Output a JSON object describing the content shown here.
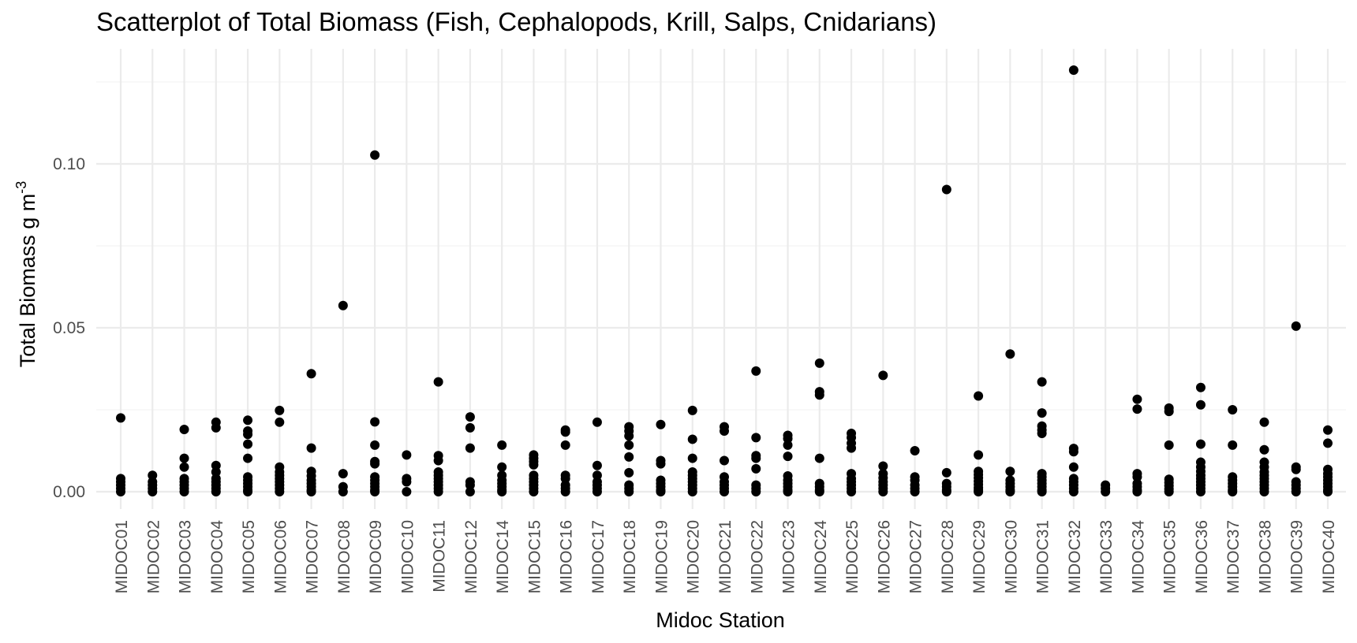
{
  "chart_data": {
    "type": "scatter",
    "title": "Scatterplot of Total Biomass (Fish, Cephalopods, Krill, Salps, Cnidarians)",
    "xlabel": "Midoc Station",
    "ylabel": "Total Biomass g m",
    "ylabel_superscript": "-3",
    "ylim": [
      -0.006,
      0.13
    ],
    "y_ticks": [
      0.0,
      0.05,
      0.1
    ],
    "y_tick_labels": [
      "0.00",
      "0.05",
      "0.10"
    ],
    "grid": true,
    "legend": "none",
    "categories": [
      "MIDOC01",
      "MIDOC02",
      "MIDOC03",
      "MIDOC04",
      "MIDOC05",
      "MIDOC06",
      "MIDOC07",
      "MIDOC08",
      "MIDOC09",
      "MIDOC10",
      "MIDOC11",
      "MIDOC12",
      "MIDOC14",
      "MIDOC15",
      "MIDOC16",
      "MIDOC17",
      "MIDOC18",
      "MIDOC19",
      "MIDOC20",
      "MIDOC21",
      "MIDOC22",
      "MIDOC23",
      "MIDOC24",
      "MIDOC25",
      "MIDOC26",
      "MIDOC27",
      "MIDOC28",
      "MIDOC29",
      "MIDOC30",
      "MIDOC31",
      "MIDOC32",
      "MIDOC33",
      "MIDOC34",
      "MIDOC35",
      "MIDOC36",
      "MIDOC37",
      "MIDOC38",
      "MIDOC39",
      "MIDOC40"
    ],
    "values": [
      [
        0.0225,
        0.004,
        0.003,
        0.002,
        0.001,
        0.0
      ],
      [
        0.005,
        0.003,
        0.002,
        0.001,
        0.0
      ],
      [
        0.019,
        0.0102,
        0.0075,
        0.004,
        0.003,
        0.002,
        0.001,
        0.0
      ],
      [
        0.0212,
        0.0195,
        0.008,
        0.006,
        0.004,
        0.003,
        0.002,
        0.001,
        0.0
      ],
      [
        0.0218,
        0.0185,
        0.0175,
        0.0145,
        0.0102,
        0.0045,
        0.0035,
        0.0025,
        0.0015,
        0.0005,
        0.0
      ],
      [
        0.0248,
        0.0212,
        0.0075,
        0.006,
        0.005,
        0.004,
        0.003,
        0.002,
        0.001,
        0.0
      ],
      [
        0.036,
        0.0133,
        0.0062,
        0.0048,
        0.0035,
        0.0025,
        0.0015,
        0.0005,
        0.0
      ],
      [
        0.0568,
        0.0055,
        0.0015,
        0.0
      ],
      [
        0.1027,
        0.0213,
        0.0142,
        0.0092,
        0.0085,
        0.0045,
        0.0035,
        0.0025,
        0.0015,
        0.0005,
        0.0
      ],
      [
        0.0112,
        0.004,
        0.003,
        0.0
      ],
      [
        0.0335,
        0.011,
        0.0095,
        0.006,
        0.005,
        0.004,
        0.003,
        0.002,
        0.001,
        0.0
      ],
      [
        0.0228,
        0.0195,
        0.0133,
        0.003,
        0.002,
        0.0
      ],
      [
        0.0142,
        0.0075,
        0.005,
        0.0035,
        0.0025,
        0.0015,
        0.0005,
        0.0
      ],
      [
        0.0112,
        0.0102,
        0.0092,
        0.0082,
        0.005,
        0.004,
        0.003,
        0.002,
        0.001,
        0.0
      ],
      [
        0.0188,
        0.0182,
        0.0142,
        0.005,
        0.004,
        0.002,
        0.001,
        0.0
      ],
      [
        0.0212,
        0.008,
        0.005,
        0.003,
        0.002,
        0.001,
        0.0
      ],
      [
        0.0198,
        0.0185,
        0.017,
        0.0142,
        0.0106,
        0.0058,
        0.002,
        0.001,
        0.0
      ],
      [
        0.0205,
        0.0095,
        0.0085,
        0.0035,
        0.0025,
        0.0015,
        0.0005,
        0.0
      ],
      [
        0.0248,
        0.016,
        0.0102,
        0.006,
        0.005,
        0.004,
        0.003,
        0.002,
        0.001,
        0.0
      ],
      [
        0.0198,
        0.0185,
        0.0095,
        0.0045,
        0.003,
        0.002,
        0.001,
        0.0
      ],
      [
        0.0368,
        0.0165,
        0.011,
        0.0102,
        0.007,
        0.002,
        0.001,
        0.0
      ],
      [
        0.0172,
        0.0162,
        0.0142,
        0.0108,
        0.0048,
        0.0035,
        0.0025,
        0.0015,
        0.0005,
        0.0
      ],
      [
        0.0392,
        0.0305,
        0.0295,
        0.0102,
        0.0025,
        0.0015,
        0.0005,
        0.0
      ],
      [
        0.0178,
        0.0165,
        0.0148,
        0.0133,
        0.0055,
        0.004,
        0.003,
        0.002,
        0.001,
        0.0
      ],
      [
        0.0355,
        0.0078,
        0.0055,
        0.0042,
        0.003,
        0.002,
        0.001,
        0.0
      ],
      [
        0.0125,
        0.0045,
        0.0035,
        0.002,
        0.001,
        0.0
      ],
      [
        0.0922,
        0.0058,
        0.0025,
        0.0015,
        0.0005,
        0.0
      ],
      [
        0.0292,
        0.0112,
        0.0062,
        0.0052,
        0.0042,
        0.0032,
        0.0022,
        0.0012,
        0.0005,
        0.0
      ],
      [
        0.042,
        0.0062,
        0.0035,
        0.0025,
        0.0015,
        0.0005,
        0.0
      ],
      [
        0.0335,
        0.024,
        0.02,
        0.0188,
        0.0178,
        0.0055,
        0.0045,
        0.0035,
        0.0025,
        0.0015,
        0.0005,
        0.0
      ],
      [
        0.1286,
        0.0132,
        0.0122,
        0.0075,
        0.004,
        0.003,
        0.002,
        0.001,
        0.0
      ],
      [
        0.002,
        0.001,
        0.0
      ],
      [
        0.0282,
        0.0252,
        0.0055,
        0.0045,
        0.0025,
        0.0015,
        0.0005,
        0.0
      ],
      [
        0.0255,
        0.0245,
        0.0142,
        0.0038,
        0.0028,
        0.0018,
        0.0008,
        0.0
      ],
      [
        0.0318,
        0.0265,
        0.0145,
        0.009,
        0.0075,
        0.0062,
        0.005,
        0.004,
        0.003,
        0.002,
        0.001,
        0.0
      ],
      [
        0.025,
        0.0142,
        0.0045,
        0.0035,
        0.0025,
        0.0015,
        0.0005,
        0.0
      ],
      [
        0.0212,
        0.0128,
        0.009,
        0.0075,
        0.006,
        0.005,
        0.004,
        0.003,
        0.002,
        0.001,
        0.0
      ],
      [
        0.0505,
        0.0075,
        0.0068,
        0.003,
        0.002,
        0.001,
        0.0
      ],
      [
        0.0188,
        0.0148,
        0.0068,
        0.0055,
        0.0045,
        0.0035,
        0.0025,
        0.0015,
        0.0005,
        0.0
      ]
    ]
  }
}
